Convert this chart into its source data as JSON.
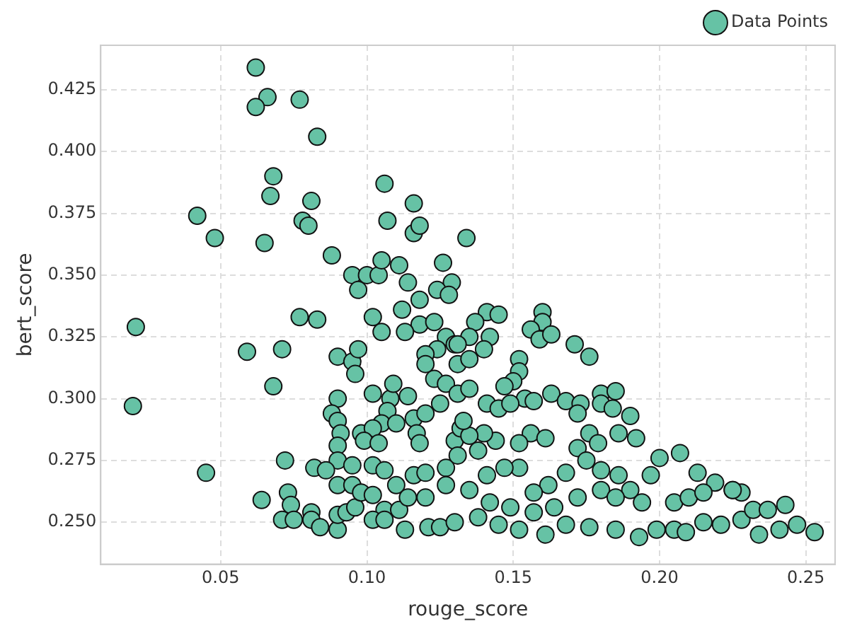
{
  "chart_data": {
    "type": "scatter",
    "xlabel": "rouge_score",
    "ylabel": "bert_score",
    "xlim": [
      0.009,
      0.26
    ],
    "ylim": [
      0.233,
      0.443
    ],
    "xticks": [
      {
        "value": 0.05,
        "label": "0.05"
      },
      {
        "value": 0.1,
        "label": "0.10"
      },
      {
        "value": 0.15,
        "label": "0.15"
      },
      {
        "value": 0.2,
        "label": "0.20"
      },
      {
        "value": 0.25,
        "label": "0.25"
      }
    ],
    "yticks": [
      {
        "value": 0.25,
        "label": "0.250"
      },
      {
        "value": 0.275,
        "label": "0.275"
      },
      {
        "value": 0.3,
        "label": "0.300"
      },
      {
        "value": 0.325,
        "label": "0.325"
      },
      {
        "value": 0.35,
        "label": "0.350"
      },
      {
        "value": 0.375,
        "label": "0.375"
      },
      {
        "value": 0.4,
        "label": "0.400"
      },
      {
        "value": 0.425,
        "label": "0.425"
      }
    ],
    "grid": true,
    "legend": "top right",
    "marker": "circle",
    "series": [
      {
        "name": "Data Points",
        "color": "#66c2a5",
        "x": [
          0.062,
          0.066,
          0.062,
          0.077,
          0.083,
          0.068,
          0.067,
          0.081,
          0.042,
          0.078,
          0.08,
          0.048,
          0.065,
          0.088,
          0.106,
          0.107,
          0.116,
          0.116,
          0.118,
          0.134,
          0.095,
          0.1,
          0.104,
          0.097,
          0.105,
          0.111,
          0.126,
          0.114,
          0.129,
          0.124,
          0.128,
          0.118,
          0.021,
          0.02,
          0.045,
          0.077,
          0.083,
          0.059,
          0.071,
          0.068,
          0.072,
          0.064,
          0.073,
          0.074,
          0.071,
          0.075,
          0.081,
          0.081,
          0.084,
          0.09,
          0.09,
          0.093,
          0.096,
          0.102,
          0.105,
          0.112,
          0.118,
          0.123,
          0.113,
          0.09,
          0.095,
          0.097,
          0.096,
          0.09,
          0.088,
          0.09,
          0.091,
          0.09,
          0.09,
          0.082,
          0.086,
          0.095,
          0.09,
          0.095,
          0.102,
          0.108,
          0.109,
          0.114,
          0.107,
          0.105,
          0.11,
          0.116,
          0.12,
          0.098,
          0.102,
          0.099,
          0.104,
          0.117,
          0.118,
          0.102,
          0.106,
          0.11,
          0.116,
          0.12,
          0.127,
          0.098,
          0.102,
          0.106,
          0.111,
          0.114,
          0.12,
          0.127,
          0.102,
          0.106,
          0.113,
          0.121,
          0.125,
          0.13,
          0.123,
          0.127,
          0.131,
          0.125,
          0.127,
          0.13,
          0.124,
          0.12,
          0.12,
          0.131,
          0.13,
          0.131,
          0.132,
          0.141,
          0.145,
          0.137,
          0.135,
          0.142,
          0.14,
          0.135,
          0.131,
          0.16,
          0.16,
          0.156,
          0.159,
          0.163,
          0.171,
          0.176,
          0.152,
          0.152,
          0.15,
          0.147,
          0.135,
          0.141,
          0.145,
          0.154,
          0.149,
          0.157,
          0.163,
          0.168,
          0.173,
          0.18,
          0.185,
          0.172,
          0.18,
          0.184,
          0.19,
          0.176,
          0.179,
          0.186,
          0.192,
          0.172,
          0.156,
          0.161,
          0.152,
          0.144,
          0.14,
          0.135,
          0.138,
          0.133,
          0.2,
          0.207,
          0.197,
          0.213,
          0.219,
          0.225,
          0.228,
          0.175,
          0.18,
          0.186,
          0.19,
          0.194,
          0.168,
          0.162,
          0.157,
          0.152,
          0.147,
          0.141,
          0.135,
          0.142,
          0.149,
          0.157,
          0.164,
          0.172,
          0.18,
          0.185,
          0.138,
          0.145,
          0.152,
          0.161,
          0.168,
          0.176,
          0.185,
          0.193,
          0.199,
          0.205,
          0.209,
          0.215,
          0.221,
          0.228,
          0.234,
          0.241,
          0.247,
          0.253,
          0.232,
          0.237,
          0.243,
          0.205,
          0.21,
          0.215,
          0.225
        ],
        "values": [
          0.434,
          0.422,
          0.418,
          0.421,
          0.406,
          0.39,
          0.382,
          0.38,
          0.374,
          0.372,
          0.37,
          0.365,
          0.363,
          0.358,
          0.387,
          0.372,
          0.379,
          0.367,
          0.37,
          0.365,
          0.35,
          0.35,
          0.35,
          0.344,
          0.356,
          0.354,
          0.355,
          0.347,
          0.347,
          0.344,
          0.342,
          0.34,
          0.329,
          0.297,
          0.27,
          0.333,
          0.332,
          0.319,
          0.32,
          0.305,
          0.275,
          0.259,
          0.262,
          0.257,
          0.251,
          0.251,
          0.254,
          0.251,
          0.248,
          0.247,
          0.253,
          0.254,
          0.256,
          0.333,
          0.327,
          0.336,
          0.33,
          0.331,
          0.327,
          0.317,
          0.315,
          0.32,
          0.31,
          0.3,
          0.294,
          0.291,
          0.286,
          0.281,
          0.275,
          0.272,
          0.271,
          0.273,
          0.265,
          0.265,
          0.302,
          0.3,
          0.306,
          0.301,
          0.295,
          0.29,
          0.29,
          0.292,
          0.294,
          0.286,
          0.288,
          0.283,
          0.282,
          0.286,
          0.282,
          0.273,
          0.271,
          0.265,
          0.269,
          0.27,
          0.272,
          0.262,
          0.261,
          0.255,
          0.255,
          0.26,
          0.26,
          0.265,
          0.251,
          0.251,
          0.247,
          0.248,
          0.248,
          0.25,
          0.308,
          0.306,
          0.302,
          0.298,
          0.325,
          0.322,
          0.32,
          0.318,
          0.314,
          0.314,
          0.283,
          0.277,
          0.288,
          0.335,
          0.334,
          0.331,
          0.325,
          0.325,
          0.32,
          0.316,
          0.322,
          0.335,
          0.331,
          0.328,
          0.324,
          0.326,
          0.322,
          0.317,
          0.316,
          0.311,
          0.307,
          0.305,
          0.304,
          0.298,
          0.296,
          0.3,
          0.298,
          0.299,
          0.302,
          0.299,
          0.298,
          0.302,
          0.303,
          0.294,
          0.298,
          0.296,
          0.293,
          0.286,
          0.282,
          0.286,
          0.284,
          0.28,
          0.286,
          0.284,
          0.282,
          0.283,
          0.286,
          0.285,
          0.279,
          0.291,
          0.276,
          0.278,
          0.269,
          0.27,
          0.266,
          0.263,
          0.262,
          0.275,
          0.271,
          0.269,
          0.263,
          0.258,
          0.27,
          0.265,
          0.262,
          0.272,
          0.272,
          0.269,
          0.263,
          0.258,
          0.256,
          0.254,
          0.256,
          0.26,
          0.263,
          0.26,
          0.252,
          0.249,
          0.247,
          0.245,
          0.249,
          0.248,
          0.247,
          0.244,
          0.247,
          0.247,
          0.246,
          0.25,
          0.249,
          0.251,
          0.245,
          0.247,
          0.249,
          0.246,
          0.255,
          0.255,
          0.257,
          0.258,
          0.26,
          0.262,
          0.263
        ]
      }
    ]
  }
}
